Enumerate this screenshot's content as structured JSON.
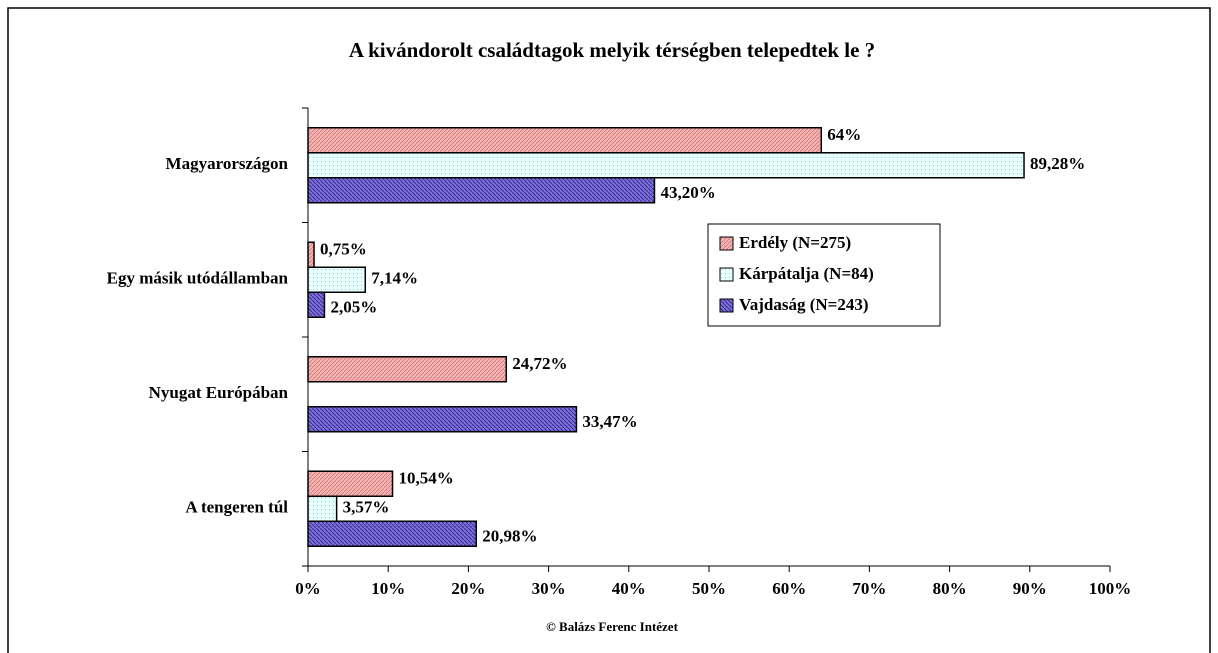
{
  "chart_data": {
    "type": "barh",
    "title": "A kivándorolt családtagok melyik térségben telepedtek le ?",
    "source": "© Balázs Ferenc Intézet",
    "categories": [
      "Magyarországon",
      "Egy másik utódállamban",
      "Nyugat Európában",
      "A tengeren túl"
    ],
    "series": [
      {
        "name": "Erdély (N=275)",
        "color": "#f2b3b3",
        "values": [
          64,
          0.75,
          24.72,
          10.54
        ],
        "value_labels": [
          "64%",
          "0,75%",
          "24,72%",
          "10,54%"
        ]
      },
      {
        "name": "Kárpátalja (N=84)",
        "color": "#e6ffff",
        "values": [
          89.28,
          7.14,
          null,
          3.57
        ],
        "value_labels": [
          "89,28%",
          "7,14%",
          null,
          "3,57%"
        ]
      },
      {
        "name": "Vajdaság (N=243)",
        "color": "#7b6fd6",
        "values": [
          43.2,
          2.05,
          33.47,
          20.98
        ],
        "value_labels": [
          "43,20%",
          "2,05%",
          "33,47%",
          "20,98%"
        ]
      }
    ],
    "xlim": [
      0,
      100
    ],
    "xticks": [
      {
        "value": 0,
        "label": "0%"
      },
      {
        "value": 10,
        "label": "10%"
      },
      {
        "value": 20,
        "label": "20%"
      },
      {
        "value": 30,
        "label": "30%"
      },
      {
        "value": 40,
        "label": "40%"
      },
      {
        "value": 50,
        "label": "50%"
      },
      {
        "value": 60,
        "label": "60%"
      },
      {
        "value": 70,
        "label": "70%"
      },
      {
        "value": 80,
        "label": "80%"
      },
      {
        "value": 90,
        "label": "90%"
      },
      {
        "value": 100,
        "label": "100%"
      }
    ],
    "legend": "inside"
  }
}
